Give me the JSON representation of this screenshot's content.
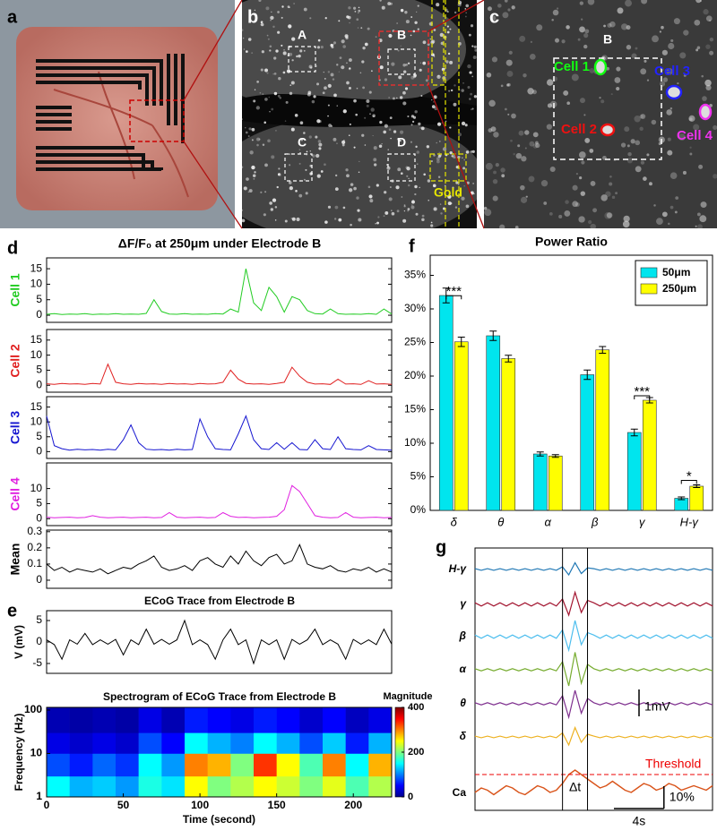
{
  "panel_labels": [
    "a",
    "b",
    "c",
    "d",
    "e",
    "f",
    "g"
  ],
  "images": {
    "b": {
      "regions": [
        "A",
        "B",
        "C",
        "D"
      ],
      "gold": "Gold"
    },
    "c": {
      "region": "B",
      "cells": [
        "Cell 1",
        "Cell 2",
        "Cell 3",
        "Cell 4"
      ]
    }
  },
  "chart_data": [
    {
      "type": "multiline",
      "title": "ΔF/F₀ at 250μm under Electrode B",
      "x": [
        0,
        5,
        10,
        15,
        20,
        25,
        30,
        35,
        40,
        45,
        50,
        55,
        60,
        65,
        70,
        75,
        80,
        85,
        90,
        95,
        100,
        105,
        110,
        115,
        120,
        125,
        130,
        135,
        140,
        145,
        150,
        155,
        160,
        165,
        170,
        175,
        180,
        185,
        190,
        195,
        200,
        205,
        210,
        215,
        220,
        225
      ],
      "xlim": [
        0,
        225
      ],
      "series": [
        {
          "name": "Cell 1",
          "color": "#22cc22",
          "ylim": [
            -2.3,
            18.5
          ],
          "yticks": [
            0,
            5,
            10,
            15
          ],
          "values": [
            0.3,
            0.5,
            0.2,
            0.4,
            0.3,
            0.5,
            0.2,
            0.4,
            0.3,
            0.5,
            0.3,
            0.4,
            0.3,
            0.6,
            5,
            1.2,
            0.4,
            0.3,
            0.5,
            0.3,
            0.4,
            0.3,
            0.5,
            0.4,
            2,
            1,
            15,
            4,
            1.5,
            9,
            6,
            1,
            6,
            5,
            1.5,
            0.5,
            0.4,
            2,
            0.5,
            0.3,
            0.4,
            0.3,
            0.5,
            0.3,
            2,
            0.4
          ]
        },
        {
          "name": "Cell 2",
          "color": "#e02020",
          "ylim": [
            -2.3,
            18.5
          ],
          "yticks": [
            0,
            5,
            10,
            15
          ],
          "values": [
            0.5,
            0.3,
            0.6,
            0.4,
            0.5,
            0.3,
            0.6,
            0.4,
            7,
            1,
            0.5,
            0.3,
            0.6,
            0.4,
            0.5,
            0.3,
            0.6,
            0.4,
            0.5,
            0.3,
            0.6,
            0.4,
            0.5,
            1,
            5,
            2,
            0.6,
            0.4,
            0.5,
            0.3,
            0.6,
            1,
            6,
            3,
            1,
            0.4,
            0.5,
            0.3,
            2,
            0.4,
            0.5,
            0.3,
            1.5,
            0.4,
            0.5,
            0.3
          ]
        },
        {
          "name": "Cell 3",
          "color": "#1515d0",
          "ylim": [
            -2.3,
            18.5
          ],
          "yticks": [
            0,
            5,
            10,
            15
          ],
          "values": [
            12,
            2,
            1,
            0.5,
            0.8,
            0.6,
            0.7,
            0.5,
            0.8,
            0.6,
            4,
            9,
            3,
            0.8,
            0.6,
            0.7,
            0.5,
            0.8,
            0.6,
            0.7,
            11,
            5,
            1,
            0.7,
            0.6,
            6,
            12,
            4,
            1,
            0.7,
            3,
            0.8,
            3,
            0.7,
            0.6,
            4,
            1,
            0.7,
            5,
            1,
            0.7,
            0.6,
            2,
            0.7,
            0.6,
            0.5
          ]
        },
        {
          "name": "Cell 4",
          "color": "#e020e0",
          "ylim": [
            -2.3,
            18.5
          ],
          "yticks": [
            0,
            5,
            10
          ],
          "values": [
            0.5,
            0.3,
            0.4,
            0.5,
            0.3,
            0.4,
            1,
            0.5,
            0.3,
            0.4,
            0.5,
            0.3,
            0.4,
            0.5,
            0.3,
            0.4,
            2,
            0.5,
            0.3,
            0.4,
            0.5,
            0.3,
            0.4,
            2,
            0.8,
            0.4,
            0.5,
            0.3,
            0.4,
            0.5,
            0.8,
            3,
            11,
            9,
            5,
            1,
            0.5,
            0.3,
            0.4,
            2,
            0.5,
            0.3,
            0.4,
            0.5,
            0.3,
            0.4
          ]
        },
        {
          "name": "Mean",
          "color": "#000000",
          "ylim": [
            -0.05,
            0.31
          ],
          "yticks": [
            0,
            0.1,
            0.2,
            0.3
          ],
          "values": [
            0.1,
            0.06,
            0.08,
            0.05,
            0.07,
            0.06,
            0.05,
            0.07,
            0.04,
            0.06,
            0.08,
            0.07,
            0.1,
            0.12,
            0.15,
            0.08,
            0.06,
            0.07,
            0.09,
            0.06,
            0.12,
            0.14,
            0.1,
            0.08,
            0.15,
            0.1,
            0.18,
            0.12,
            0.09,
            0.14,
            0.16,
            0.1,
            0.12,
            0.22,
            0.1,
            0.08,
            0.07,
            0.09,
            0.06,
            0.05,
            0.07,
            0.06,
            0.08,
            0.05,
            0.07,
            0.05
          ]
        }
      ]
    },
    {
      "type": "line",
      "title": "ECoG Trace from Electrode B",
      "ylabel": "V (mV)",
      "color": "#000000",
      "x": [
        0,
        5,
        10,
        15,
        20,
        25,
        30,
        35,
        40,
        45,
        50,
        55,
        60,
        65,
        70,
        75,
        80,
        85,
        90,
        95,
        100,
        105,
        110,
        115,
        120,
        125,
        130,
        135,
        140,
        145,
        150,
        155,
        160,
        165,
        170,
        175,
        180,
        185,
        190,
        195,
        200,
        205,
        210,
        215,
        220,
        225
      ],
      "values": [
        0.5,
        -0.6,
        -4,
        0.5,
        -0.5,
        2,
        -0.6,
        0.5,
        -0.5,
        0.6,
        -3,
        0.5,
        -0.6,
        3,
        -0.5,
        0.6,
        -0.5,
        0.5,
        5,
        -0.6,
        0.5,
        -0.6,
        -4,
        0.5,
        3,
        -0.6,
        0.5,
        -5,
        0.5,
        -0.6,
        0.5,
        -4,
        0.6,
        -0.5,
        0.5,
        3,
        -0.6,
        0.5,
        -0.5,
        -4,
        0.6,
        -0.5,
        0.5,
        -0.6,
        3,
        -0.5
      ],
      "xlim": [
        0,
        225
      ],
      "ylim": [
        -7.3,
        7.3
      ],
      "yticks": [
        -5,
        0,
        5
      ]
    },
    {
      "type": "heatmap",
      "title": "Spectrogram of ECoG Trace from Electrode B",
      "xlabel": "Time (second)",
      "ylabel": "Frequency (Hz)",
      "colorbar_label": "Magnitude",
      "x_edges": [
        0,
        15,
        30,
        45,
        60,
        75,
        90,
        105,
        120,
        135,
        150,
        165,
        180,
        195,
        210,
        225
      ],
      "y_edges": [
        1,
        3,
        10,
        30,
        115
      ],
      "z": [
        [
          150,
          120,
          130,
          110,
          160,
          140,
          250,
          200,
          220,
          250,
          230,
          200,
          240,
          180,
          220
        ],
        [
          80,
          60,
          90,
          70,
          150,
          110,
          300,
          280,
          200,
          330,
          250,
          180,
          300,
          150,
          280
        ],
        [
          40,
          30,
          40,
          30,
          80,
          50,
          150,
          120,
          100,
          150,
          120,
          80,
          130,
          60,
          120
        ],
        [
          20,
          15,
          20,
          15,
          40,
          20,
          60,
          50,
          40,
          60,
          50,
          30,
          50,
          25,
          40
        ]
      ],
      "clim": [
        0,
        400
      ],
      "cticks": [
        0,
        200,
        400
      ],
      "xlim": [
        0,
        225
      ],
      "xticks": [
        0,
        50,
        100,
        150,
        200
      ],
      "ylim": [
        1,
        115
      ],
      "yticks": [
        1,
        10,
        100
      ],
      "ylog": true
    },
    {
      "type": "bar",
      "title": "Power Ratio",
      "categories": [
        "δ",
        "θ",
        "α",
        "β",
        "γ",
        "H-γ"
      ],
      "series": [
        {
          "name": "50μm",
          "color": "#00e5ee",
          "values": [
            32,
            26,
            8.4,
            20.2,
            11.6,
            1.8
          ],
          "errors": [
            1.1,
            0.7,
            0.3,
            0.7,
            0.5,
            0.2
          ]
        },
        {
          "name": "250μm",
          "color": "#ffff00",
          "values": [
            25.1,
            22.6,
            8.1,
            23.9,
            16.4,
            3.6
          ],
          "errors": [
            0.7,
            0.5,
            0.2,
            0.5,
            0.4,
            0.2
          ]
        }
      ],
      "significance": [
        "***",
        null,
        null,
        null,
        "***",
        "*"
      ],
      "ylim": [
        0,
        38
      ],
      "yticks": [
        {
          "value": 0,
          "label": "0%"
        },
        {
          "value": 5,
          "label": "5%"
        },
        {
          "value": 10,
          "label": "10%"
        },
        {
          "value": 15,
          "label": "15%"
        },
        {
          "value": 20,
          "label": "20%"
        },
        {
          "value": 25,
          "label": "25%"
        },
        {
          "value": 30,
          "label": "30%"
        },
        {
          "value": 35,
          "label": "35%"
        }
      ],
      "legend": "upper right"
    },
    {
      "type": "traces",
      "xlim": [
        0,
        19
      ],
      "x": [
        0,
        0.5,
        1,
        1.5,
        2,
        2.5,
        3,
        3.5,
        4,
        4.5,
        5,
        5.5,
        6,
        6.5,
        7,
        7.5,
        8,
        8.5,
        9,
        9.5,
        10,
        10.5,
        11,
        11.5,
        12,
        12.5,
        13,
        13.5,
        14,
        14.5,
        15,
        15.5,
        16,
        16.5,
        17,
        17.5,
        18,
        18.5,
        19
      ],
      "series": [
        {
          "name": "H-γ",
          "color": "#1f77b4",
          "values": [
            0.03,
            -0.03,
            0.03,
            -0.03,
            0.03,
            -0.03,
            0.03,
            -0.03,
            0.03,
            -0.03,
            0.03,
            -0.03,
            0.03,
            -0.03,
            0.1,
            -0.2,
            0.25,
            -0.15,
            0.06,
            0.03,
            -0.03,
            0.03,
            -0.03,
            0.03,
            -0.03,
            0.03,
            -0.03,
            0.03,
            -0.03,
            0.03,
            -0.03,
            0.03,
            -0.03,
            0.03,
            -0.03,
            0.03,
            -0.03,
            0.03,
            -0.03
          ]
        },
        {
          "name": "γ",
          "color": "#a2142f",
          "values": [
            0.06,
            -0.06,
            0.06,
            -0.06,
            0.06,
            -0.06,
            0.06,
            -0.06,
            0.06,
            -0.06,
            0.06,
            -0.06,
            0.06,
            -0.06,
            0.2,
            -0.4,
            0.45,
            -0.3,
            0.15,
            0.06,
            -0.06,
            0.06,
            -0.06,
            0.06,
            -0.06,
            0.06,
            -0.06,
            0.06,
            -0.06,
            0.06,
            -0.06,
            0.06,
            -0.06,
            0.06,
            -0.06,
            0.06,
            -0.06,
            0.06,
            -0.06
          ]
        },
        {
          "name": "β",
          "color": "#4dbeee",
          "values": [
            0.06,
            -0.06,
            0.06,
            -0.06,
            0.06,
            -0.06,
            0.06,
            -0.06,
            0.06,
            -0.06,
            0.06,
            -0.06,
            0.06,
            -0.06,
            0.25,
            -0.5,
            0.6,
            -0.3,
            0.15,
            0.06,
            -0.06,
            0.06,
            -0.06,
            0.06,
            -0.06,
            0.06,
            -0.06,
            0.06,
            -0.06,
            0.06,
            -0.06,
            0.06,
            -0.06,
            0.06,
            -0.06,
            0.06,
            -0.06,
            0.06,
            -0.06
          ]
        },
        {
          "name": "α",
          "color": "#77ac30",
          "values": [
            0.04,
            -0.04,
            0.04,
            -0.04,
            0.04,
            -0.04,
            0.04,
            -0.04,
            0.04,
            -0.04,
            0.04,
            -0.04,
            0.04,
            -0.04,
            0.3,
            -0.6,
            0.65,
            -0.5,
            0.2,
            0.04,
            -0.04,
            0.04,
            -0.04,
            0.04,
            -0.04,
            0.04,
            -0.04,
            0.04,
            -0.04,
            0.04,
            -0.04,
            0.04,
            -0.04,
            0.04,
            -0.04,
            0.04,
            -0.04,
            0.04,
            -0.04
          ]
        },
        {
          "name": "θ",
          "color": "#7e2f8e",
          "values": [
            0.04,
            -0.04,
            0.04,
            -0.04,
            0.04,
            -0.04,
            0.04,
            -0.04,
            0.04,
            -0.04,
            0.04,
            -0.04,
            0.04,
            -0.04,
            0.3,
            -0.5,
            0.5,
            -0.35,
            0.2,
            0.04,
            -0.04,
            0.04,
            -0.04,
            0.04,
            -0.04,
            0.04,
            -0.04,
            0.04,
            -0.04,
            0.04,
            -0.04,
            0.04,
            -0.04,
            0.04,
            -0.04,
            0.04,
            -0.04,
            0.04,
            -0.04
          ]
        },
        {
          "name": "δ",
          "color": "#edb120",
          "values": [
            0.03,
            -0.03,
            0.03,
            -0.03,
            0.03,
            -0.03,
            0.03,
            -0.03,
            0.03,
            -0.03,
            0.03,
            -0.03,
            0.03,
            -0.03,
            0.15,
            -0.3,
            0.35,
            -0.2,
            0.1,
            0.03,
            -0.03,
            0.03,
            -0.03,
            0.03,
            -0.03,
            0.03,
            -0.03,
            0.03,
            -0.03,
            0.03,
            -0.03,
            0.03,
            -0.03,
            0.03,
            -0.03,
            0.03,
            -0.03,
            0.03,
            -0.03
          ]
        }
      ],
      "ca": {
        "name": "Ca",
        "color": "#d95319",
        "values": [
          2,
          4,
          3,
          1,
          3,
          5,
          4,
          2,
          1,
          3,
          5,
          4,
          2,
          3,
          6,
          10,
          12,
          10,
          8,
          6,
          4,
          5,
          7,
          5,
          3,
          2,
          4,
          6,
          5,
          3,
          4,
          6,
          5,
          3,
          4,
          5,
          4,
          3,
          5
        ]
      },
      "threshold": 10,
      "threshold_label": "Threshold",
      "markers": [
        7,
        9
      ],
      "delta_label": "Δt",
      "scale_bars": [
        {
          "label": "1mV",
          "value": 1
        },
        {
          "label": "4s",
          "value": 4
        },
        {
          "label": "10%",
          "value": 10
        }
      ]
    }
  ]
}
